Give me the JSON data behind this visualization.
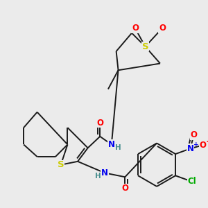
{
  "bg": "#ebebeb",
  "lc": "#1a1a1a",
  "lw": 1.4,
  "fs": 8.5,
  "figsize": [
    3.0,
    3.0
  ],
  "dpi": 100,
  "colors": {
    "S": "#cccc00",
    "O": "#ff0000",
    "N": "#0000ee",
    "Cl": "#00aa00",
    "H": "#4a9090",
    "C": "#1a1a1a"
  }
}
